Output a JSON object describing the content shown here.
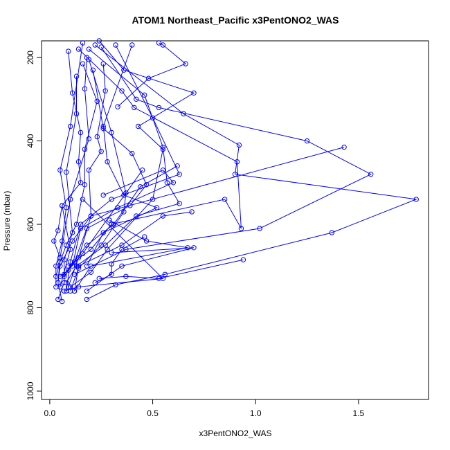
{
  "chart_data": {
    "type": "line",
    "title": "ATOM1 Northeast_Pacific x3PentONO2_WAS",
    "xlabel": "x3PentONO2_WAS",
    "ylabel": "Pressure (mbar)",
    "xlim": [
      -0.04,
      1.84
    ],
    "ylim": [
      1020,
      160
    ],
    "y_inverted": true,
    "x_ticks": [
      0,
      0.5,
      1,
      1.5
    ],
    "x_tick_labels": [
      "0.0",
      "0.5",
      "1.0",
      "1.5"
    ],
    "y_ticks": [
      200,
      400,
      600,
      800,
      1000
    ],
    "y_tick_labels": [
      "200",
      "400",
      "600",
      "800",
      "1000"
    ],
    "grid": false,
    "legend": "none",
    "series_color": "#0000ff",
    "marker": "open-circle",
    "series": [
      {
        "points": [
          [
            0.24,
            160
          ],
          [
            0.36,
            230
          ],
          [
            0.7,
            285
          ],
          [
            0.43,
            365
          ],
          [
            0.55,
            420
          ],
          [
            0.5,
            540
          ],
          [
            0.28,
            660
          ],
          [
            0.2,
            715
          ],
          [
            0.1,
            750
          ]
        ]
      },
      {
        "points": [
          [
            0.25,
            175
          ],
          [
            0.42,
            300
          ],
          [
            0.53,
            320
          ],
          [
            1.25,
            400
          ],
          [
            1.56,
            480
          ],
          [
            1.02,
            610
          ],
          [
            0.37,
            660
          ],
          [
            0.12,
            720
          ]
        ]
      },
      {
        "points": [
          [
            0.22,
            170
          ],
          [
            0.65,
            335
          ],
          [
            0.92,
            410
          ],
          [
            0.9,
            480
          ],
          [
            1.78,
            540
          ],
          [
            1.37,
            620
          ],
          [
            0.56,
            720
          ],
          [
            0.32,
            745
          ],
          [
            0.18,
            780
          ]
        ]
      },
      {
        "points": [
          [
            0.14,
            180
          ],
          [
            0.35,
            280
          ],
          [
            0.41,
            320
          ],
          [
            0.91,
            450
          ],
          [
            0.93,
            610
          ],
          [
            0.85,
            540
          ],
          [
            0.3,
            600
          ],
          [
            0.2,
            660
          ],
          [
            0.09,
            700
          ]
        ]
      },
      {
        "points": [
          [
            0.19,
            180
          ],
          [
            0.46,
            290
          ],
          [
            0.55,
            415
          ],
          [
            0.57,
            500
          ],
          [
            0.63,
            550
          ],
          [
            0.42,
            580
          ],
          [
            0.27,
            650
          ],
          [
            0.13,
            700
          ],
          [
            0.08,
            740
          ]
        ]
      },
      {
        "points": [
          [
            0.16,
            215
          ],
          [
            0.23,
            305
          ],
          [
            0.17,
            420
          ],
          [
            0.17,
            505
          ],
          [
            0.13,
            600
          ],
          [
            0.08,
            650
          ],
          [
            0.05,
            690
          ],
          [
            0.03,
            725
          ]
        ]
      },
      {
        "points": [
          [
            0.13,
            245
          ],
          [
            0.13,
            335
          ],
          [
            0.08,
            475
          ],
          [
            0.11,
            620
          ],
          [
            0.07,
            685
          ],
          [
            0.07,
            740
          ],
          [
            0.04,
            780
          ]
        ]
      },
      {
        "points": [
          [
            0.18,
            200
          ],
          [
            0.17,
            275
          ],
          [
            0.19,
            395
          ],
          [
            0.1,
            540
          ],
          [
            0.05,
            680
          ],
          [
            0.04,
            740
          ],
          [
            0.06,
            785
          ]
        ]
      },
      {
        "points": [
          [
            0.26,
            215
          ],
          [
            0.27,
            280
          ],
          [
            0.23,
            390
          ],
          [
            0.25,
            425
          ],
          [
            0.19,
            470
          ],
          [
            0.2,
            580
          ],
          [
            0.14,
            680
          ],
          [
            0.09,
            750
          ]
        ]
      },
      {
        "points": [
          [
            0.09,
            185
          ],
          [
            0.11,
            285
          ],
          [
            0.15,
            380
          ],
          [
            0.14,
            450
          ],
          [
            0.15,
            500
          ],
          [
            0.06,
            555
          ],
          [
            0.1,
            660
          ],
          [
            0.05,
            750
          ]
        ]
      },
      {
        "points": [
          [
            0.32,
            170
          ],
          [
            0.5,
            345
          ],
          [
            0.63,
            480
          ],
          [
            0.3,
            540
          ],
          [
            0.15,
            600
          ],
          [
            0.1,
            690
          ],
          [
            0.08,
            760
          ]
        ]
      },
      {
        "points": [
          [
            0.16,
            165
          ],
          [
            0.1,
            365
          ],
          [
            0.05,
            470
          ],
          [
            0.08,
            560
          ],
          [
            0.06,
            640
          ],
          [
            0.03,
            700
          ],
          [
            0.03,
            750
          ]
        ]
      },
      {
        "points": [
          [
            0.4,
            170
          ],
          [
            0.26,
            365
          ],
          [
            0.28,
            450
          ],
          [
            0.36,
            530
          ],
          [
            0.52,
            560
          ],
          [
            0.26,
            620
          ],
          [
            0.18,
            700
          ]
        ]
      },
      {
        "points": [
          [
            0.19,
            205
          ],
          [
            0.3,
            380
          ],
          [
            0.37,
            525
          ],
          [
            0.36,
            570
          ],
          [
            0.25,
            650
          ],
          [
            0.14,
            705
          ],
          [
            0.1,
            760
          ]
        ]
      },
      {
        "points": [
          [
            0.21,
            230
          ],
          [
            0.26,
            370
          ],
          [
            0.4,
            430
          ],
          [
            0.47,
            505
          ],
          [
            0.39,
            555
          ],
          [
            0.18,
            610
          ],
          [
            0.12,
            690
          ],
          [
            0.07,
            725
          ]
        ]
      },
      {
        "points": [
          [
            0.45,
            470
          ],
          [
            0.16,
            670
          ],
          [
            0.09,
            710
          ],
          [
            0.05,
            725
          ]
        ]
      },
      {
        "points": [
          [
            0.26,
            530
          ],
          [
            0.55,
            470
          ],
          [
            0.6,
            500
          ],
          [
            0.33,
            560
          ],
          [
            0.15,
            610
          ],
          [
            0.11,
            700
          ]
        ]
      },
      {
        "points": [
          [
            0.62,
            460
          ],
          [
            0.44,
            510
          ],
          [
            0.31,
            600
          ],
          [
            0.18,
            650
          ],
          [
            0.07,
            720
          ]
        ]
      },
      {
        "points": [
          [
            0.69,
            570
          ],
          [
            0.55,
            580
          ],
          [
            0.35,
            650
          ],
          [
            0.14,
            700
          ],
          [
            0.12,
            760
          ]
        ]
      },
      {
        "points": [
          [
            0.29,
            590
          ],
          [
            0.47,
            640
          ],
          [
            0.67,
            656
          ],
          [
            0.2,
            700
          ],
          [
            0.12,
            760
          ]
        ]
      },
      {
        "points": [
          [
            0.16,
            540
          ],
          [
            0.55,
            730
          ],
          [
            0.14,
            750
          ],
          [
            0.07,
            760
          ]
        ]
      },
      {
        "points": [
          [
            1.43,
            415
          ],
          [
            0.2,
            580
          ],
          [
            0.11,
            640
          ],
          [
            0.05,
            700
          ],
          [
            0.04,
            740
          ]
        ]
      },
      {
        "points": [
          [
            0.3,
            668
          ],
          [
            0.7,
            656
          ],
          [
            0.35,
            700
          ],
          [
            0.18,
            760
          ]
        ]
      },
      {
        "points": [
          [
            0.53,
            165
          ],
          [
            0.55,
            170
          ],
          [
            0.66,
            215
          ],
          [
            0.48,
            250
          ],
          [
            0.33,
            318
          ]
        ]
      },
      {
        "points": [
          [
            0.46,
            630
          ],
          [
            0.35,
            660
          ],
          [
            0.3,
            695
          ],
          [
            0.3,
            720
          ],
          [
            0.22,
            740
          ]
        ]
      },
      {
        "points": [
          [
            0.06,
            555
          ],
          [
            0.04,
            615
          ],
          [
            0.02,
            640
          ],
          [
            0.05,
            680
          ]
        ]
      },
      {
        "points": [
          [
            0.94,
            685
          ],
          [
            0.53,
            730
          ],
          [
            0.37,
            725
          ],
          [
            0.24,
            730
          ]
        ]
      }
    ]
  }
}
